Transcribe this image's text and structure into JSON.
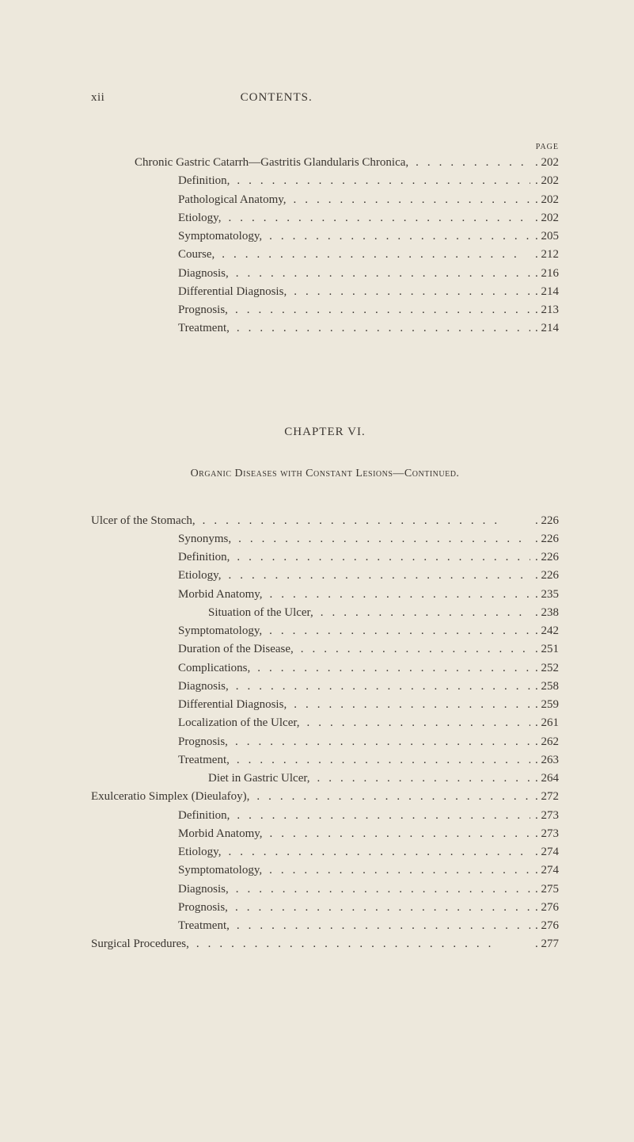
{
  "header": {
    "roman": "xii",
    "title": "CONTENTS.",
    "pageLabel": "PAGE"
  },
  "section1": {
    "entries": [
      {
        "indent": 1,
        "text": "Chronic Gastric Catarrh—Gastritis Glandularis Chronica,",
        "page": "202"
      },
      {
        "indent": 2,
        "text": "Definition,",
        "page": "202"
      },
      {
        "indent": 2,
        "text": "Pathological Anatomy,",
        "page": "202"
      },
      {
        "indent": 2,
        "text": "Etiology,",
        "page": "202"
      },
      {
        "indent": 2,
        "text": "Symptomatology,",
        "page": "205"
      },
      {
        "indent": 2,
        "text": "Course,",
        "page": "212"
      },
      {
        "indent": 2,
        "text": "Diagnosis,",
        "page": "216"
      },
      {
        "indent": 2,
        "text": "Differential Diagnosis,",
        "page": "214"
      },
      {
        "indent": 2,
        "text": "Prognosis,",
        "page": "213"
      },
      {
        "indent": 2,
        "text": "Treatment,",
        "page": "214"
      }
    ]
  },
  "chapter": {
    "heading": "CHAPTER VI.",
    "subtitle": "Organic Diseases with Constant Lesions—Continued."
  },
  "section2": {
    "entries": [
      {
        "indent": 0,
        "text": "Ulcer of the Stomach,",
        "page": "226"
      },
      {
        "indent": 2,
        "text": "Synonyms,",
        "page": "226"
      },
      {
        "indent": 2,
        "text": "Definition,",
        "page": "226"
      },
      {
        "indent": 2,
        "text": "Etiology,",
        "page": "226"
      },
      {
        "indent": 2,
        "text": "Morbid Anatomy,",
        "page": "235"
      },
      {
        "indent": 3,
        "text": "Situation of the Ulcer,",
        "page": "238"
      },
      {
        "indent": 2,
        "text": "Symptomatology,",
        "page": "242"
      },
      {
        "indent": 2,
        "text": "Duration of the Disease,",
        "page": "251"
      },
      {
        "indent": 2,
        "text": "Complications,",
        "page": "252"
      },
      {
        "indent": 2,
        "text": "Diagnosis,",
        "page": "258"
      },
      {
        "indent": 2,
        "text": "Differential Diagnosis,",
        "page": "259"
      },
      {
        "indent": 2,
        "text": "Localization of the Ulcer,",
        "page": "261"
      },
      {
        "indent": 2,
        "text": "Prognosis,",
        "page": "262"
      },
      {
        "indent": 2,
        "text": "Treatment,",
        "page": "263"
      },
      {
        "indent": 3,
        "text": "Diet in Gastric Ulcer,",
        "page": "264"
      },
      {
        "indent": 0,
        "text": "Exulceratio Simplex (Dieulafoy),",
        "page": "272"
      },
      {
        "indent": 2,
        "text": "Definition,",
        "page": "273"
      },
      {
        "indent": 2,
        "text": "Morbid Anatomy,",
        "page": "273"
      },
      {
        "indent": 2,
        "text": "Etiology,",
        "page": "274"
      },
      {
        "indent": 2,
        "text": "Symptomatology,",
        "page": "274"
      },
      {
        "indent": 2,
        "text": "Diagnosis,",
        "page": "275"
      },
      {
        "indent": 2,
        "text": "Prognosis,",
        "page": "276"
      },
      {
        "indent": 2,
        "text": "Treatment,",
        "page": "276"
      },
      {
        "indent": 0,
        "text": "Surgical Procedures,",
        "page": "277"
      }
    ]
  },
  "dotLeader": ".........................."
}
